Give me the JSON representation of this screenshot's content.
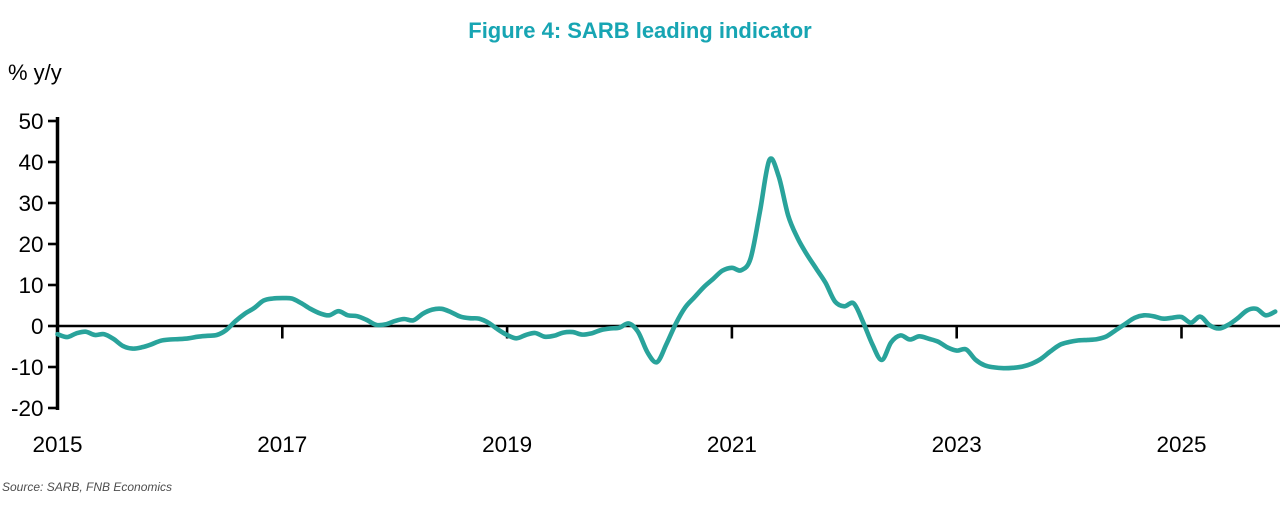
{
  "title": "Figure 4: SARB leading indicator",
  "y_axis_label": "% y/y",
  "source": "Source: SARB, FNB Economics",
  "colors": {
    "title": "#17a5b3",
    "line": "#29a39b",
    "axis": "#000000",
    "source_text": "#4d4d4d",
    "background": "#ffffff"
  },
  "chart_data": {
    "type": "line",
    "title": "Figure 4: SARB leading indicator",
    "xlabel": "",
    "ylabel": "% y/y",
    "ylim": [
      -20,
      50
    ],
    "y_ticks": [
      50,
      40,
      30,
      20,
      10,
      0,
      "-10",
      "-20"
    ],
    "x_ticks": [
      2015,
      2017,
      2019,
      2021,
      2023,
      2025
    ],
    "x_range": [
      2015.0,
      2025.92
    ],
    "grid": false,
    "legend_position": "none",
    "zero_line": true,
    "series": [
      {
        "name": "SARB leading indicator, % y/y",
        "start_year": 2015,
        "frequency": "monthly",
        "values": [
          -2.0,
          -2.7,
          -1.8,
          -1.4,
          -2.2,
          -2.0,
          -3.2,
          -4.9,
          -5.5,
          -5.2,
          -4.5,
          -3.6,
          -3.3,
          -3.2,
          -3.0,
          -2.6,
          -2.4,
          -2.2,
          -1.0,
          1.2,
          3.0,
          4.4,
          6.2,
          6.7,
          6.8,
          6.7,
          5.6,
          4.2,
          3.1,
          2.6,
          3.6,
          2.6,
          2.4,
          1.5,
          0.3,
          0.4,
          1.2,
          1.7,
          1.4,
          3.0,
          4.0,
          4.2,
          3.4,
          2.3,
          1.9,
          1.8,
          0.8,
          -0.8,
          -2.2,
          -3.0,
          -2.2,
          -1.7,
          -2.6,
          -2.4,
          -1.6,
          -1.5,
          -2.1,
          -1.8,
          -1.0,
          -0.6,
          -0.4,
          0.6,
          -1.5,
          -6.5,
          -8.8,
          -4.5,
          0.5,
          4.5,
          7.0,
          9.5,
          11.5,
          13.5,
          14.2,
          13.6,
          16.5,
          28.0,
          40.5,
          36.5,
          27.0,
          21.5,
          17.5,
          14.0,
          10.5,
          6.0,
          4.8,
          5.5,
          1.0,
          -4.5,
          -8.3,
          -4.0,
          -2.3,
          -3.3,
          -2.5,
          -3.1,
          -3.8,
          -5.2,
          -6.0,
          -5.7,
          -8.2,
          -9.6,
          -10.1,
          -10.3,
          -10.2,
          -9.9,
          -9.2,
          -8.0,
          -6.2,
          -4.6,
          -3.9,
          -3.5,
          -3.4,
          -3.2,
          -2.5,
          -1.0,
          0.5,
          2.0,
          2.6,
          2.4,
          1.8,
          2.0,
          2.2,
          0.8,
          2.3,
          0.2,
          -0.6,
          0.3,
          1.9,
          3.8,
          4.2,
          2.6,
          3.5
        ]
      }
    ]
  }
}
